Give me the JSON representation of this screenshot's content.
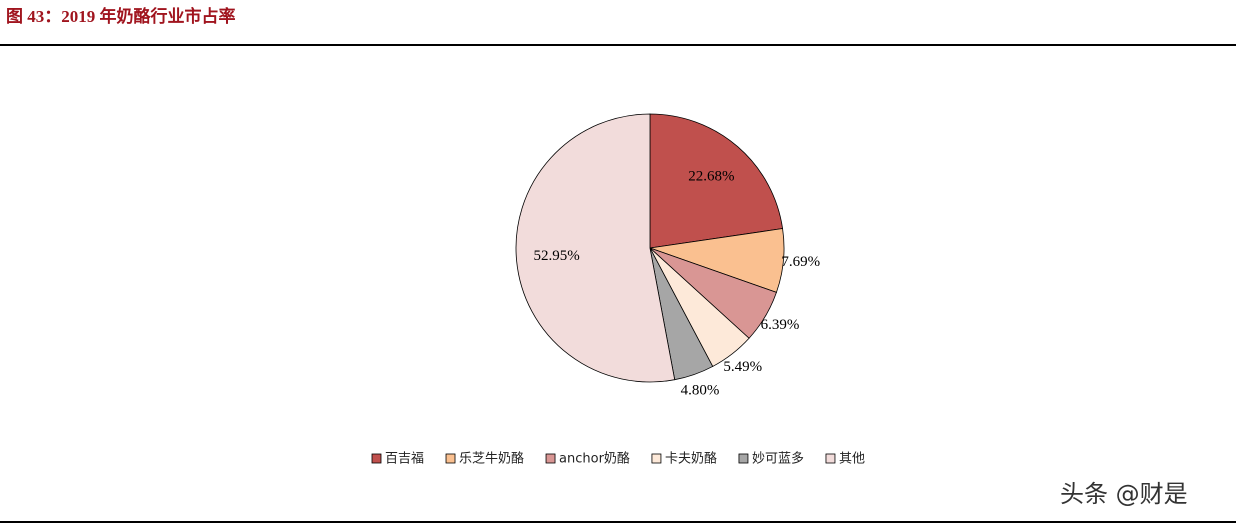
{
  "chart_data": {
    "type": "pie",
    "title": "图 43：2019 年奶酪行业市占率",
    "categories": [
      "百吉福",
      "乐芝牛奶酪",
      "anchor奶酪",
      "卡夫奶酪",
      "妙可蓝多",
      "其他"
    ],
    "values": [
      22.68,
      7.69,
      6.39,
      5.49,
      4.8,
      52.95
    ],
    "value_labels": [
      "22.68%",
      "7.69%",
      "6.39%",
      "5.49%",
      "4.80%",
      "52.95%"
    ],
    "colors": [
      "#c0504d",
      "#fac090",
      "#d99694",
      "#fde9d9",
      "#a6a6a6",
      "#f2dcdb"
    ],
    "legend": "bottom"
  },
  "watermark": "头条 @财是"
}
